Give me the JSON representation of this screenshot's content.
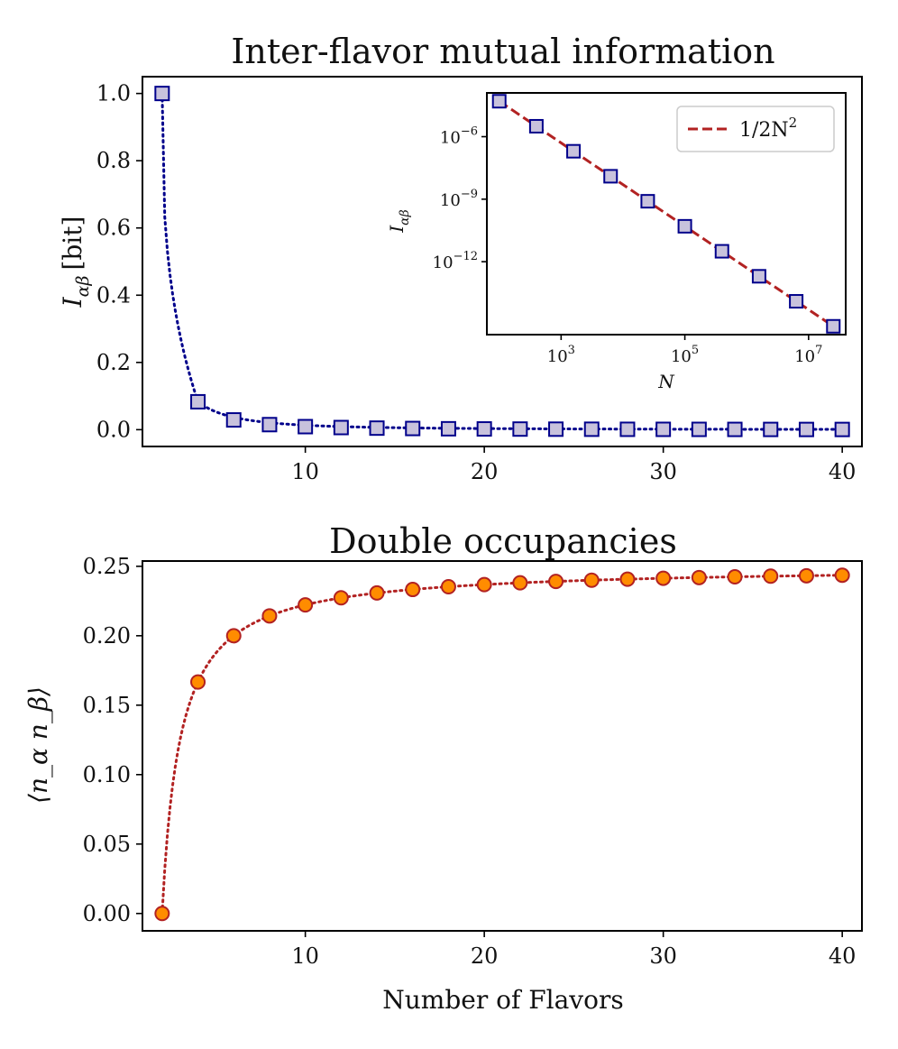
{
  "chart_data": [
    {
      "type": "line",
      "title": "Inter-flavor mutual information",
      "xlabel": "",
      "ylabel": "I_{αβ} [bit]",
      "ylabel_main": "I",
      "ylabel_sub": "αβ",
      "ylabel_suffix": "[bit]",
      "xlim": [
        0.9,
        41.1
      ],
      "ylim": [
        -0.05,
        1.05
      ],
      "xticks": [
        10,
        20,
        30,
        40
      ],
      "yticks": [
        "0.0",
        "0.2",
        "0.4",
        "0.6",
        "0.8",
        "1.0"
      ],
      "series": [
        {
          "name": "I_ab",
          "marker": "square",
          "line_style": "dotted",
          "line_color": "#00008b",
          "marker_face": "#c8c2dc",
          "marker_edge": "#00008b",
          "x": [
            2,
            4,
            6,
            8,
            10,
            12,
            14,
            16,
            18,
            20,
            22,
            24,
            26,
            28,
            30,
            32,
            34,
            36,
            38,
            40
          ],
          "values": [
            1.0,
            0.083,
            0.029,
            0.015,
            0.009,
            0.0063,
            0.0046,
            0.0035,
            0.0027,
            0.0022,
            0.0018,
            0.0015,
            0.0013,
            0.0011,
            0.001,
            0.0009,
            0.0008,
            0.0007,
            0.0006,
            0.0006
          ]
        }
      ],
      "inset": {
        "type": "line",
        "xscale": "log",
        "yscale": "log",
        "xlabel": "N",
        "ylabel_main": "I",
        "ylabel_sub": "αβ",
        "xtick_exponents": [
          "3",
          "5",
          "7"
        ],
        "ytick_exponents": [
          "−6",
          "−9",
          "−12"
        ],
        "tick_base": "10",
        "legend_label_prefix": "1/2N",
        "legend_label_exp": "2",
        "legend_placement": "top-right",
        "fit_color": "#b22222",
        "series": [
          {
            "name": "I_ab",
            "marker": "square",
            "x_log10": [
              2.0,
              2.6,
              3.2,
              3.8,
              4.4,
              5.0,
              5.6,
              6.2,
              6.8,
              7.4
            ],
            "y_log10": [
              -4.3,
              -5.5,
              -6.7,
              -7.9,
              -9.1,
              -10.3,
              -11.5,
              -12.7,
              -13.9,
              -15.1
            ]
          }
        ],
        "fit_line": {
          "name": "1/2N^2",
          "x_log10": [
            2.0,
            7.4
          ],
          "y_log10": [
            -4.3,
            -15.1
          ]
        }
      }
    },
    {
      "type": "line",
      "title": "Double occupancies",
      "xlabel": "Number of Flavors",
      "ylabel": "⟨n_α n_β⟩",
      "xlim": [
        0.9,
        41.1
      ],
      "ylim": [
        -0.0125,
        0.2538
      ],
      "xticks": [
        10,
        20,
        30,
        40
      ],
      "yticks": [
        "0.00",
        "0.05",
        "0.10",
        "0.15",
        "0.20",
        "0.25"
      ],
      "series": [
        {
          "name": "double_occupancy",
          "marker": "circle",
          "line_style": "dotted",
          "line_color": "#b22222",
          "marker_face": "#ff8c00",
          "marker_edge": "#b22222",
          "x": [
            2,
            4,
            6,
            8,
            10,
            12,
            14,
            16,
            18,
            20,
            22,
            24,
            26,
            28,
            30,
            32,
            34,
            36,
            38,
            40
          ],
          "values": [
            0.0,
            0.1667,
            0.2,
            0.2143,
            0.2222,
            0.2273,
            0.2308,
            0.2333,
            0.2353,
            0.2368,
            0.2381,
            0.2391,
            0.24,
            0.2407,
            0.2414,
            0.2419,
            0.2424,
            0.2429,
            0.2432,
            0.2436
          ]
        }
      ]
    }
  ]
}
